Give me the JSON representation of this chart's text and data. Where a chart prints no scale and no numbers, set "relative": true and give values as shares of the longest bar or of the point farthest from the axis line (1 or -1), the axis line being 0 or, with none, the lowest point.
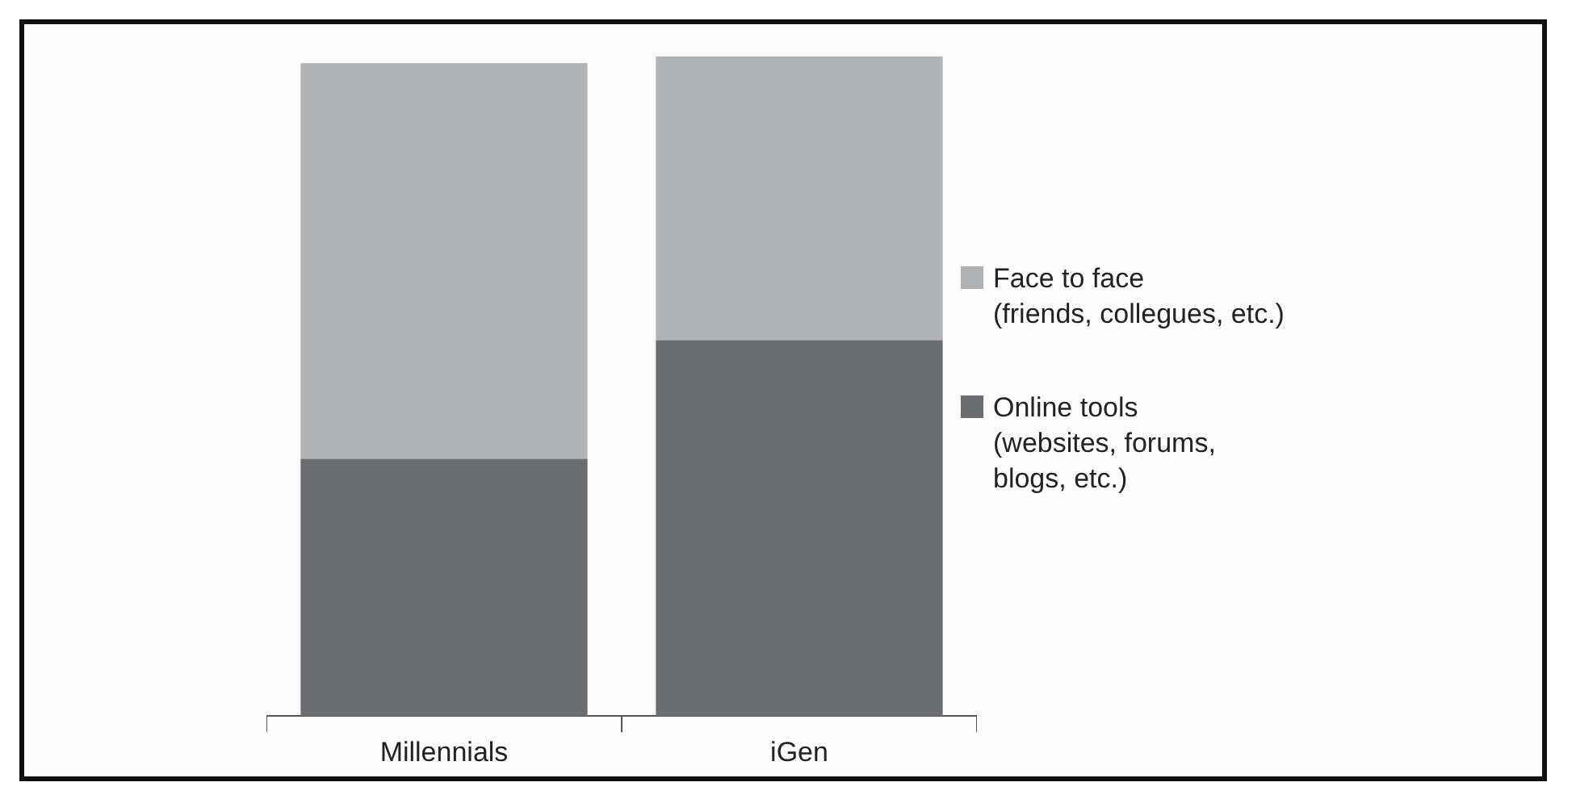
{
  "chart_data": {
    "type": "bar",
    "stacked": true,
    "relative": true,
    "categories": [
      "Millennials",
      "iGen"
    ],
    "series": [
      {
        "name": "Online tools\n(websites, forums,\nblogs, etc.)",
        "color": "#6c6d70",
        "values": [
          0.39,
          0.57
        ]
      },
      {
        "name": "Face to face\n(friends, collegues, etc.)",
        "color": "#b1b2b4",
        "values": [
          0.6,
          0.43
        ]
      }
    ],
    "legend": "right",
    "grid": false
  }
}
